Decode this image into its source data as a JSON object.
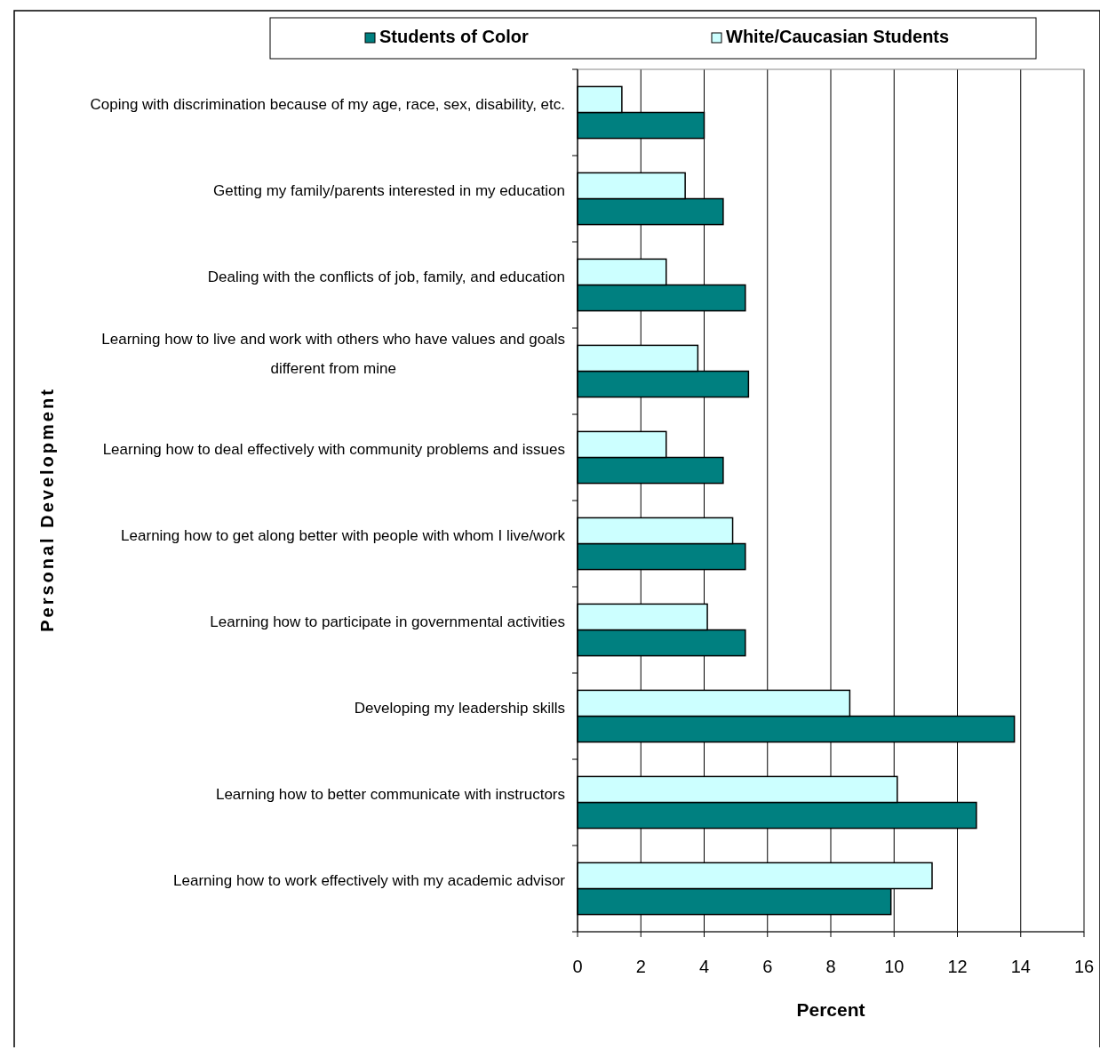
{
  "chart_data": {
    "type": "bar",
    "orientation": "horizontal",
    "ylabel": "Personal Development",
    "xlabel": "Percent",
    "categories": [
      "Coping with discrimination because of my age, race, sex, disability, etc.",
      "Getting my family/parents interested in my education",
      "Dealing with the conflicts of job, family, and education",
      "Learning how to live and work with others who have values and goals different from mine",
      "Learning how to deal effectively with community problems and issues",
      "Learning how to get along better with people with whom I live/work",
      "Learning how to participate in governmental activities",
      "Developing my leadership skills",
      "Learning how to better communicate with instructors",
      "Learning how to work effectively with my academic advisor"
    ],
    "series": [
      {
        "name": "Students of Color",
        "color": "#008080",
        "values": [
          4.0,
          4.6,
          5.3,
          5.4,
          4.6,
          5.3,
          5.3,
          13.8,
          12.6,
          9.9
        ]
      },
      {
        "name": "White/Caucasian Students",
        "color": "#ccffff",
        "values": [
          1.4,
          3.4,
          2.8,
          3.8,
          2.8,
          4.9,
          4.1,
          8.6,
          10.1,
          11.2
        ]
      }
    ],
    "xlim": [
      0,
      16
    ],
    "xticks": [
      0,
      2,
      4,
      6,
      8,
      10,
      12,
      14,
      16
    ],
    "grid": "x",
    "legend": "top"
  }
}
